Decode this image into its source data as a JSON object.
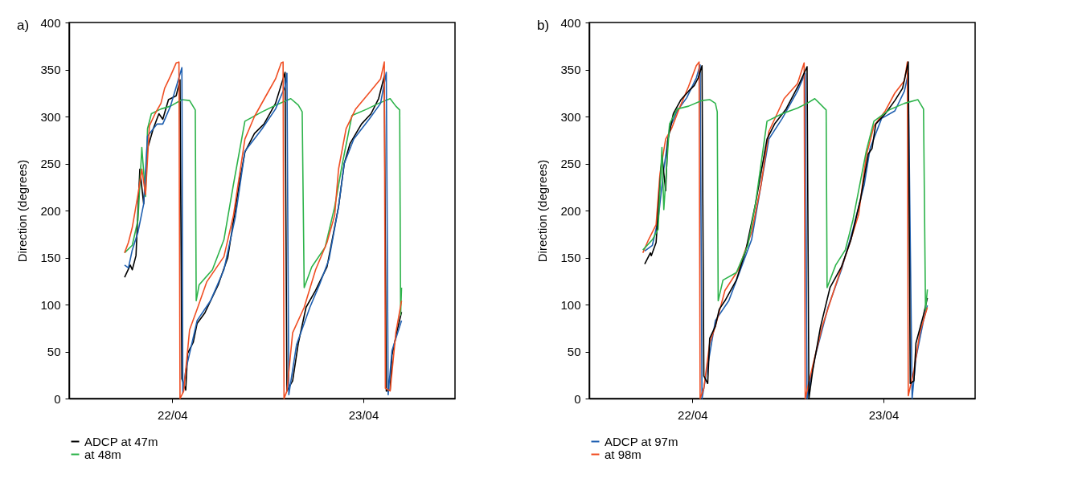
{
  "chart_data": [
    {
      "type": "line",
      "title": "a)",
      "ylabel": "Direction (degrees)",
      "xlim": [
        "--04-21T11:02",
        "--04-23T11:31"
      ],
      "xticks": [
        {
          "value": "--04-22",
          "label": "22/04"
        },
        {
          "value": "--04-23",
          "label": "23/04"
        }
      ],
      "ylim": [
        0,
        400
      ],
      "yticks": [
        0,
        50,
        100,
        150,
        200,
        250,
        300,
        350,
        400
      ],
      "grid": false,
      "legend": "bottom",
      "series": [
        {
          "name": "ADCP at 47m",
          "color": "#000000",
          "x": [
            "--04-21T18:00",
            "--04-21T18:43",
            "--04-21T18:58",
            "--04-21T19:26",
            "--04-21T19:55",
            "--04-21T20:24",
            "--04-21T20:53",
            "--04-21T21:36",
            "--04-21T22:19",
            "--04-21T22:48",
            "--04-21T23:31",
            "--04-22T00:29",
            "--04-22T00:58",
            "--04-22T01:12",
            "--04-22T01:41",
            "--04-22T01:55",
            "--04-22T02:38",
            "--04-22T03:07",
            "--04-22T04:05",
            "--04-22T05:46",
            "--04-22T06:58",
            "--04-22T08:24",
            "--04-22T09:07",
            "--04-22T10:19",
            "--04-22T11:31",
            "--04-22T12:58",
            "--04-22T14:10",
            "--04-22T14:24",
            "--04-22T15:07",
            "--04-22T15:50",
            "--04-22T16:48",
            "--04-22T18:00",
            "--04-22T19:26",
            "--04-22T20:53",
            "--04-22T21:36",
            "--04-22T22:19",
            "--04-22T23:46",
            "--04-23T00:58",
            "--04-23T01:55",
            "--04-23T02:38",
            "--04-23T02:53",
            "--04-23T03:22",
            "--04-23T03:36",
            "--04-23T04:19",
            "--04-23T04:48"
          ],
          "values": [
            129,
            142,
            137,
            152,
            244,
            207,
            266,
            287,
            303,
            297,
            318,
            322,
            339,
            21,
            9,
            48,
            60,
            80,
            91,
            121,
            150,
            228,
            262,
            282,
            292,
            314,
            347,
            8,
            19,
            59,
            97,
            115,
            140,
            204,
            250,
            271,
            292,
            303,
            319,
            343,
            8,
            9,
            46,
            75,
            92
          ]
        },
        {
          "name": "at 48m",
          "color": "#2db34a",
          "x": [
            "--04-21T18:00",
            "--04-21T18:58",
            "--04-21T19:41",
            "--04-21T20:10",
            "--04-21T20:38",
            "--04-21T20:53",
            "--04-21T21:22",
            "--04-21T22:34",
            "--04-21T23:46",
            "--04-22T01:12",
            "--04-22T02:10",
            "--04-22T02:53",
            "--04-22T03:00",
            "--04-22T03:22",
            "--04-22T05:02",
            "--04-22T06:29",
            "--04-22T07:41",
            "--04-22T09:07",
            "--04-22T11:17",
            "--04-22T12:58",
            "--04-22T14:53",
            "--04-22T15:50",
            "--04-22T16:19",
            "--04-22T16:34",
            "--04-22T17:31",
            "--04-22T19:12",
            "--04-22T20:24",
            "--04-22T21:22",
            "--04-22T22:34",
            "--04-23T00:29",
            "--04-23T01:55",
            "--04-23T03:22",
            "--04-23T04:05",
            "--04-23T04:34",
            "--04-23T04:41",
            "--04-23T04:48"
          ],
          "values": [
            155,
            163,
            190,
            267,
            215,
            287,
            303,
            308,
            311,
            318,
            317,
            307,
            104,
            121,
            137,
            169,
            228,
            295,
            305,
            312,
            319,
            312,
            305,
            118,
            140,
            161,
            204,
            250,
            301,
            308,
            314,
            319,
            311,
            307,
            89,
            118
          ]
        },
        {
          "color": "#1f5fb0",
          "x": [
            "--04-21T18:00",
            "--04-21T18:29",
            "--04-21T18:58",
            "--04-21T19:41",
            "--04-21T20:24",
            "--04-21T20:53",
            "--04-21T22:05",
            "--04-21T22:48",
            "--04-21T23:46",
            "--04-22T00:43",
            "--04-22T01:12",
            "--04-22T01:19",
            "--04-22T01:41",
            "--04-22T03:07",
            "--04-22T04:48",
            "--04-22T06:29",
            "--04-22T07:55",
            "--04-22T09:07",
            "--04-22T11:17",
            "--04-22T12:58",
            "--04-22T14:10",
            "--04-22T14:24",
            "--04-22T14:38",
            "--04-22T15:36",
            "--04-22T17:17",
            "--04-22T18:29",
            "--04-22T19:41",
            "--04-22T20:53",
            "--04-22T21:36",
            "--04-22T22:48",
            "--04-23T00:43",
            "--04-23T02:10",
            "--04-23T02:53",
            "--04-23T03:07",
            "--04-23T03:36",
            "--04-23T04:19",
            "--04-23T04:48"
          ],
          "values": [
            142,
            139,
            158,
            177,
            207,
            279,
            292,
            292,
            311,
            338,
            352,
            6,
            30,
            83,
            104,
            137,
            193,
            263,
            287,
            308,
            332,
            346,
            4,
            57,
            97,
            121,
            148,
            204,
            250,
            276,
            297,
            314,
            347,
            4,
            51,
            70,
            83
          ]
        },
        {
          "color": "#f04e23",
          "x": [
            "--04-21T18:00",
            "--04-21T18:29",
            "--04-21T18:58",
            "--04-21T19:41",
            "--04-21T20:10",
            "--04-21T20:38",
            "--04-21T21:07",
            "--04-21T21:50",
            "--04-21T22:34",
            "--04-21T23:02",
            "--04-21T23:46",
            "--04-22T00:29",
            "--04-22T00:50",
            "--04-22T00:58",
            "--04-22T01:26",
            "--04-22T02:10",
            "--04-22T03:07",
            "--04-22T04:19",
            "--04-22T06:29",
            "--04-22T07:41",
            "--04-22T09:07",
            "--04-22T10:19",
            "--04-22T11:46",
            "--04-22T12:58",
            "--04-22T13:41",
            "--04-22T13:55",
            "--04-22T14:02",
            "--04-22T14:24",
            "--04-22T15:07",
            "--04-22T16:34",
            "--04-22T18:00",
            "--04-22T19:26",
            "--04-22T20:24",
            "--04-22T20:53",
            "--04-22T21:50",
            "--04-22T23:02",
            "--04-23T00:43",
            "--04-23T02:10",
            "--04-23T02:38",
            "--04-23T02:46",
            "--04-23T03:22",
            "--04-23T04:05",
            "--04-23T04:48"
          ],
          "values": [
            155,
            166,
            182,
            217,
            244,
            217,
            290,
            303,
            314,
            330,
            343,
            357,
            358,
            0,
            8,
            73,
            95,
            124,
            151,
            195,
            276,
            300,
            322,
            340,
            357,
            358,
            0,
            8,
            70,
            97,
            137,
            166,
            195,
            244,
            287,
            308,
            325,
            340,
            358,
            11,
            8,
            70,
            104
          ]
        }
      ]
    },
    {
      "type": "line",
      "title": "b)",
      "ylabel": "Direction (degrees)",
      "xlim": [
        "--04-21T11:02",
        "--04-23T11:31"
      ],
      "xticks": [
        {
          "value": "--04-22",
          "label": "22/04"
        },
        {
          "value": "--04-23",
          "label": "23/04"
        }
      ],
      "ylim": [
        0,
        400
      ],
      "yticks": [
        0,
        50,
        100,
        150,
        200,
        250,
        300,
        350,
        400
      ],
      "grid": false,
      "legend": "bottom",
      "series": [
        {
          "name": "ADCP at 97m",
          "color": "#1f5fb0",
          "x": [
            "--04-21T18:00",
            "--04-21T18:58",
            "--04-21T19:41",
            "--04-21T20:24",
            "--04-21T21:07",
            "--04-21T22:05",
            "--04-21T23:17",
            "--04-22T00:29",
            "--04-22T00:58",
            "--04-22T01:12",
            "--04-22T01:55",
            "--04-22T02:53",
            "--04-22T04:34",
            "--04-22T05:46",
            "--04-22T07:26",
            "--04-22T08:38",
            "--04-22T09:36",
            "--04-22T11:17",
            "--04-22T13:12",
            "--04-22T14:10",
            "--04-22T14:24",
            "--04-22T15:22",
            "--04-22T17:02",
            "--04-22T18:43",
            "--04-22T20:10",
            "--04-22T21:36",
            "--04-22T22:19",
            "--04-22T23:46",
            "--04-23T01:26",
            "--04-23T02:38",
            "--04-23T03:07",
            "--04-23T03:36",
            "--04-23T04:05",
            "--04-23T05:02",
            "--04-23T05:31"
          ],
          "values": [
            157,
            163,
            190,
            244,
            287,
            306,
            320,
            341,
            355,
            0,
            35,
            83,
            104,
            131,
            169,
            228,
            276,
            298,
            327,
            346,
            0,
            43,
            97,
            137,
            180,
            228,
            266,
            298,
            306,
            327,
            346,
            0,
            43,
            83,
            99
          ]
        },
        {
          "name": "at 98m",
          "color": "#f04e23",
          "x": [
            "--04-21T17:46",
            "--04-21T18:29",
            "--04-21T19:26",
            "--04-21T19:55",
            "--04-21T20:38",
            "--04-21T21:22",
            "--04-21T22:19",
            "--04-21T23:31",
            "--04-22T00:29",
            "--04-22T00:50",
            "--04-22T00:58",
            "--04-22T01:26",
            "--04-22T02:10",
            "--04-22T02:53",
            "--04-22T04:05",
            "--04-22T05:46",
            "--04-22T07:26",
            "--04-22T08:38",
            "--04-22T09:36",
            "--04-22T11:31",
            "--04-22T13:12",
            "--04-22T14:02",
            "--04-22T14:10",
            "--04-22T15:07",
            "--04-22T16:19",
            "--04-22T18:00",
            "--04-22T19:41",
            "--04-22T20:53",
            "--04-22T21:50",
            "--04-22T22:48",
            "--04-23T00:14",
            "--04-23T01:26",
            "--04-23T02:38",
            "--04-23T03:00",
            "--04-23T03:07",
            "--04-23T03:50",
            "--04-23T04:34",
            "--04-23T05:31"
          ],
          "values": [
            155,
            169,
            185,
            239,
            276,
            287,
            308,
            332,
            354,
            358,
            0,
            11,
            59,
            77,
            115,
            137,
            177,
            228,
            284,
            319,
            335,
            357,
            0,
            35,
            77,
            121,
            163,
            196,
            258,
            290,
            306,
            325,
            338,
            358,
            3,
            30,
            70,
            97
          ]
        },
        {
          "color": "#000000",
          "x": [
            "--04-21T18:00",
            "--04-21T18:43",
            "--04-21T18:50",
            "--04-21T19:26",
            "--04-21T20:10",
            "--04-21T20:38",
            "--04-21T20:53",
            "--04-21T21:36",
            "--04-21T22:34",
            "--04-21T23:31",
            "--04-22T00:14",
            "--04-22T00:43",
            "--04-22T01:12",
            "--04-22T01:26",
            "--04-22T01:55",
            "--04-22T02:10",
            "--04-22T02:53",
            "--04-22T03:22",
            "--04-22T04:05",
            "--04-22T05:31",
            "--04-22T06:43",
            "--04-22T07:55",
            "--04-22T09:22",
            "--04-22T10:19",
            "--04-22T11:46",
            "--04-22T13:26",
            "--04-22T14:24",
            "--04-22T14:38",
            "--04-22T15:07",
            "--04-22T16:05",
            "--04-22T17:17",
            "--04-22T18:43",
            "--04-22T19:55",
            "--04-22T21:07",
            "--04-22T22:05",
            "--04-22T22:34",
            "--04-22T23:02",
            "--04-23T00:14",
            "--04-23T01:26",
            "--04-23T02:24",
            "--04-23T03:07",
            "--04-23T03:22",
            "--04-23T03:50",
            "--04-23T04:05",
            "--04-23T05:02",
            "--04-23T05:31"
          ],
          "values": [
            143,
            155,
            152,
            166,
            259,
            221,
            274,
            303,
            318,
            327,
            333,
            341,
            354,
            24,
            16,
            64,
            77,
            95,
            104,
            126,
            158,
            207,
            276,
            292,
            308,
            335,
            353,
            0,
            30,
            76,
            118,
            140,
            169,
            212,
            260,
            266,
            292,
            303,
            317,
            330,
            358,
            16,
            19,
            59,
            89,
            107
          ]
        },
        {
          "color": "#2db34a",
          "x": [
            "--04-21T17:46",
            "--04-21T18:58",
            "--04-21T19:41",
            "--04-21T20:10",
            "--04-21T20:24",
            "--04-21T21:07",
            "--04-21T22:05",
            "--04-21T23:31",
            "--04-22T01:12",
            "--04-22T02:10",
            "--04-22T02:53",
            "--04-22T03:07",
            "--04-22T03:14",
            "--04-22T03:50",
            "--04-22T05:31",
            "--04-22T06:58",
            "--04-22T07:55",
            "--04-22T09:22",
            "--04-22T11:17",
            "--04-22T13:12",
            "--04-22T14:24",
            "--04-22T15:22",
            "--04-22T16:48",
            "--04-22T16:55",
            "--04-22T18:00",
            "--04-22T19:12",
            "--04-22T20:10",
            "--04-22T21:50",
            "--04-22T22:48",
            "--04-23T00:43",
            "--04-23T02:38",
            "--04-23T04:19",
            "--04-23T05:02",
            "--04-23T05:17",
            "--04-23T05:31"
          ],
          "values": [
            158,
            169,
            180,
            267,
            201,
            292,
            308,
            311,
            317,
            318,
            314,
            305,
            104,
            126,
            134,
            163,
            207,
            295,
            303,
            309,
            314,
            319,
            307,
            118,
            142,
            158,
            190,
            263,
            295,
            307,
            314,
            318,
            308,
            94,
            116
          ]
        }
      ]
    }
  ]
}
